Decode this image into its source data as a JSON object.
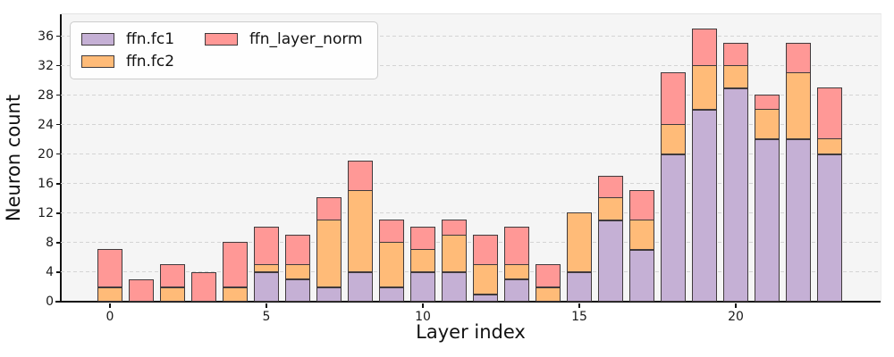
{
  "chart_data": {
    "type": "bar",
    "stacked": true,
    "title": "",
    "xlabel": "Layer index",
    "ylabel": "Neuron count",
    "x": [
      0,
      1,
      2,
      3,
      4,
      5,
      6,
      7,
      8,
      9,
      10,
      11,
      12,
      13,
      14,
      15,
      16,
      17,
      18,
      19,
      20,
      21,
      22,
      23
    ],
    "series": [
      {
        "name": "ffn.fc1",
        "color": "#c5b0d5",
        "values": [
          0,
          0,
          0,
          0,
          0,
          4,
          3,
          2,
          4,
          2,
          4,
          4,
          1,
          3,
          0,
          4,
          11,
          7,
          20,
          26,
          29,
          22,
          22,
          20
        ]
      },
      {
        "name": "ffn.fc2",
        "color": "#ffbb78",
        "values": [
          2,
          0,
          2,
          0,
          2,
          1,
          2,
          9,
          11,
          6,
          3,
          5,
          4,
          2,
          2,
          8,
          3,
          4,
          4,
          6,
          3,
          4,
          9,
          2
        ]
      },
      {
        "name": "ffn_layer_norm",
        "color": "#ff9896",
        "values": [
          5,
          3,
          3,
          4,
          6,
          5,
          4,
          3,
          4,
          3,
          3,
          2,
          4,
          5,
          3,
          0,
          3,
          4,
          7,
          5,
          3,
          2,
          4,
          7
        ]
      }
    ],
    "totals": [
      7,
      3,
      5,
      4,
      8,
      10,
      9,
      14,
      19,
      11,
      10,
      11,
      9,
      10,
      5,
      12,
      17,
      15,
      31,
      37,
      35,
      28,
      35,
      29
    ],
    "yticks": [
      0,
      4,
      8,
      12,
      16,
      20,
      24,
      28,
      32,
      36
    ],
    "xticks": [
      0,
      5,
      10,
      15,
      20
    ],
    "ylim": [
      0,
      39
    ],
    "grid": "horizontal-dashed",
    "legend_position": "upper-left",
    "legend_columns": 2,
    "bar_edge_color": "#403a3c",
    "plot_background": "#f5f5f5",
    "gridline_color": "#d4d4d4"
  }
}
